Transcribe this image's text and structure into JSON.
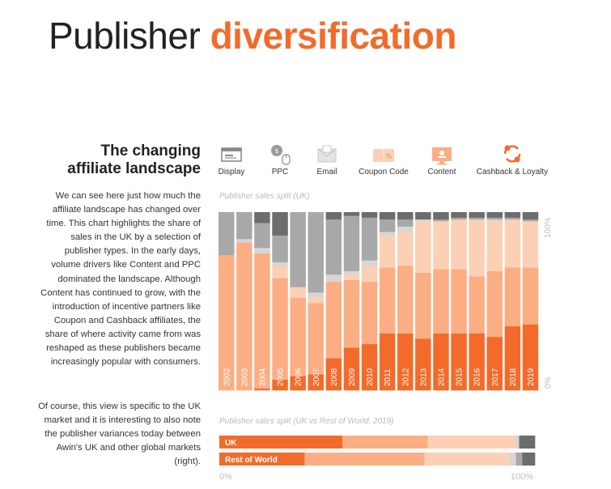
{
  "header": {
    "title_plain": "Publisher",
    "title_accent": "diversification"
  },
  "sidebar": {
    "heading_line1": "The changing",
    "heading_line2": "affiliate landscape",
    "paragraph1": "We can see here just how much the affiliate landscape has changed over time. This chart highlights the share of sales in the UK by a selection of publisher types. In the early days, volume drivers like Content and PPC dominated the landscape. Although Content has continued to grow, with the introduction of incentive partners like Coupon and Cashback affiliates, the share of where activity came from was reshaped as these publishers became increasingly popular with consumers.",
    "paragraph2": "Of course, this view is specific to the UK market and it is interesting to also note the publisher variances today between Awin's UK and other global markets (right)."
  },
  "legend": {
    "items": [
      {
        "label": "Display",
        "icon": "display-icon",
        "color": "#6d6d6d"
      },
      {
        "label": "PPC",
        "icon": "ppc-icon",
        "color": "#a8a8a8"
      },
      {
        "label": "Email",
        "icon": "email-icon",
        "color": "#d6d6d6"
      },
      {
        "label": "Coupon Code",
        "icon": "coupon-icon",
        "color": "#fcd0b4"
      },
      {
        "label": "Content",
        "icon": "content-icon",
        "color": "#fbae84"
      },
      {
        "label": "Cashback & Loyalty",
        "icon": "cashback-icon",
        "color": "#f26b2b"
      }
    ]
  },
  "colors": {
    "display": "#6d6d6d",
    "ppc": "#a8a8a8",
    "email": "#d6d6d6",
    "coupon": "#fcd0b4",
    "content": "#fbae84",
    "cashback": "#f26b2b"
  },
  "chart_data": [
    {
      "type": "bar",
      "stacked": true,
      "title": "Publisher sales split (UK)",
      "ylim": [
        0,
        100
      ],
      "y_axis_labels": [
        "0%",
        "100%"
      ],
      "categories": [
        "2002",
        "2003",
        "2004",
        "2005",
        "2006",
        "2007",
        "2008",
        "2009",
        "2010",
        "2011",
        "2012",
        "2013",
        "2014",
        "2015",
        "2016",
        "2017",
        "2018",
        "2019"
      ],
      "series": [
        {
          "name": "Cashback & Loyalty",
          "values": [
            0,
            0,
            1,
            6,
            8,
            9,
            18,
            24,
            26,
            32,
            32,
            29,
            32,
            32,
            32,
            30,
            36,
            37
          ]
        },
        {
          "name": "Content",
          "values": [
            76,
            83,
            76,
            57,
            44,
            40,
            43,
            38,
            35,
            37,
            38,
            37,
            36,
            36,
            32,
            37,
            33,
            32
          ]
        },
        {
          "name": "Coupon Code",
          "values": [
            0,
            0,
            0,
            7,
            6,
            3,
            0,
            3,
            9,
            18,
            19,
            29,
            27,
            28,
            32,
            28,
            27,
            26
          ]
        },
        {
          "name": "Email",
          "values": [
            0,
            2,
            3,
            2,
            0,
            3,
            4,
            2,
            3,
            2,
            3,
            1,
            0,
            0,
            0,
            1,
            0,
            0
          ]
        },
        {
          "name": "PPC",
          "values": [
            24,
            15,
            14,
            15,
            42,
            45,
            31,
            31,
            24,
            7,
            4,
            0,
            1,
            1,
            1,
            1,
            1,
            1
          ]
        },
        {
          "name": "Display",
          "values": [
            0,
            0,
            6,
            13,
            0,
            0,
            4,
            2,
            3,
            4,
            4,
            4,
            4,
            3,
            3,
            3,
            3,
            4
          ]
        }
      ]
    },
    {
      "type": "bar",
      "stacked": true,
      "orientation": "horizontal",
      "title": "Publisher sales split (UK vs Rest of World, 2019)",
      "xlim": [
        0,
        100
      ],
      "x_axis_labels": [
        "0%",
        "100%"
      ],
      "categories": [
        "UK",
        "Rest of World"
      ],
      "series": [
        {
          "name": "Cashback & Loyalty",
          "values": [
            39,
            27
          ]
        },
        {
          "name": "Content",
          "values": [
            27,
            38
          ]
        },
        {
          "name": "Coupon Code",
          "values": [
            28,
            27
          ]
        },
        {
          "name": "Email",
          "values": [
            1,
            2
          ]
        },
        {
          "name": "PPC",
          "values": [
            0,
            2
          ]
        },
        {
          "name": "Display",
          "values": [
            5,
            4
          ]
        }
      ]
    }
  ]
}
